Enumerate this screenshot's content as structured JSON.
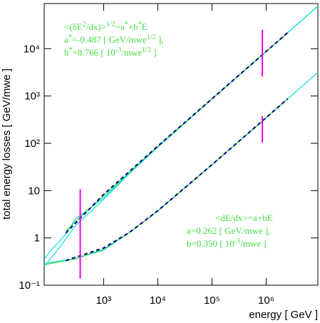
{
  "chart_data": {
    "type": "line",
    "xlabel": "energy [ GeV ]",
    "ylabel": "total energy losses [ GeV/mwe ]",
    "xscale": "log",
    "yscale": "log",
    "xlim": [
      80,
      9000000
    ],
    "ylim": [
      0.1,
      90000
    ],
    "xticks": [
      {
        "value": 1000,
        "label": "10³"
      },
      {
        "value": 10000,
        "label": "10⁴"
      },
      {
        "value": 100000,
        "label": "10⁵"
      },
      {
        "value": 1000000,
        "label": "10⁶"
      }
    ],
    "yticks": [
      {
        "value": 0.1,
        "label": "10⁻¹"
      },
      1,
      10,
      {
        "value": 100,
        "label": "10²"
      },
      {
        "value": 1000,
        "label": "10³"
      },
      {
        "value": 10000,
        "label": "10⁴"
      }
    ],
    "series": [
      {
        "color": "#22dddd",
        "dash": false,
        "x": [
          80,
          100,
          200,
          300,
          1000,
          3000,
          10000,
          100000,
          1000000,
          9000000
        ],
        "values": [
          0.35,
          0.5,
          1.2,
          2.5,
          7,
          24,
          85,
          870,
          8700,
          80000
        ]
      },
      {
        "color": "#22dddd",
        "dash": false,
        "x": [
          80,
          150,
          300,
          1000,
          3000,
          10000,
          100000,
          1000000,
          9000000
        ],
        "values": [
          0.25,
          0.6,
          1.8,
          6.5,
          23,
          83,
          860,
          8650,
          79000
        ]
      },
      {
        "color": "#44dd44",
        "dash": false,
        "x": [
          200,
          300,
          1000,
          10000,
          100000,
          1000000,
          2500000
        ],
        "values": [
          1.4,
          2.2,
          7.8,
          86,
          870,
          8700,
          21500
        ]
      },
      {
        "color": "#000088",
        "dash": true,
        "x": [
          200,
          1000,
          10000,
          100000,
          1000000,
          2500000
        ],
        "values": [
          1.27,
          8.28,
          87.2,
          876,
          8766,
          21915
        ]
      },
      {
        "color": "#22dddd",
        "dash": false,
        "x": [
          80,
          100,
          300,
          1000,
          3000,
          10000,
          100000,
          1000000,
          9000000
        ],
        "values": [
          0.28,
          0.3,
          0.365,
          0.55,
          1.3,
          3.76,
          35.3,
          350,
          3150
        ]
      },
      {
        "color": "#44dd44",
        "dash": false,
        "x": [
          80,
          300,
          1000,
          3000,
          10000,
          100000,
          1000000,
          2500000
        ],
        "values": [
          0.27,
          0.36,
          0.58,
          1.3,
          3.7,
          35,
          345,
          860
        ]
      },
      {
        "color": "#000088",
        "dash": true,
        "x": [
          200,
          1000,
          3000,
          10000,
          100000,
          1000000,
          2500000
        ],
        "values": [
          0.332,
          0.612,
          1.31,
          3.76,
          35.3,
          350,
          875
        ]
      }
    ],
    "markers": [
      {
        "color": "#ee00ee",
        "x": 370,
        "values": [
          10.7,
          0.137
        ]
      },
      {
        "color": "#ee00ee",
        "x": 850000,
        "values": [
          25000,
          2600
        ]
      },
      {
        "color": "#ee00ee",
        "x": 850000,
        "values": [
          377,
          104
        ]
      }
    ],
    "annotations": [
      {
        "color": "#44dd44",
        "lines": [
          [
            "<(δE",
            {
              "sup": "2"
            },
            "/dx)>",
            {
              "sup": "1/2"
            },
            "=a",
            {
              "sup": "*"
            },
            "+b",
            {
              "sup": "*"
            },
            "E"
          ],
          [
            "a",
            {
              "sup": "*"
            },
            "=-0.487 [ GeV/mwe",
            {
              "sup": "1/2"
            },
            " ],"
          ],
          [
            "b",
            {
              "sup": "*"
            },
            "=8.766 [ 10",
            {
              "sup": "-3"
            },
            "/mwe",
            {
              "sup": "1/2"
            },
            " ]"
          ]
        ]
      },
      {
        "color": "#44dd44",
        "lines": [
          [
            "<dE/dx>=a+bE"
          ],
          [
            "a=0.262 [ GeV/mwe ],"
          ],
          [
            "b=0.350 [ 10",
            {
              "sup": "-3"
            },
            "/mwe ]"
          ]
        ]
      }
    ]
  }
}
